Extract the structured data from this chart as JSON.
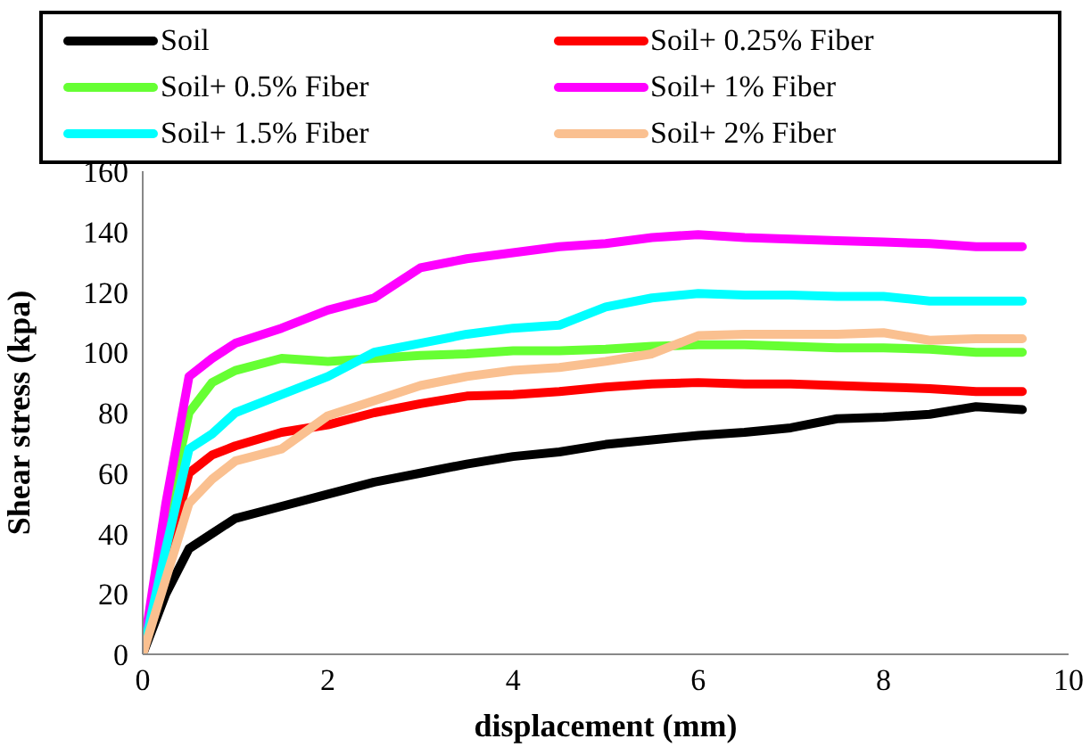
{
  "chart_data": {
    "type": "line",
    "xlabel": "displacement (mm)",
    "ylabel": "Shear stress (kpa)",
    "x": [
      0,
      0.25,
      0.5,
      0.75,
      1,
      1.5,
      2,
      2.5,
      3,
      3.5,
      4,
      4.5,
      5,
      5.5,
      6,
      6.5,
      7,
      7.5,
      8,
      8.5,
      9,
      9.5
    ],
    "series": [
      {
        "name": "Soil",
        "color": "#000000",
        "values": [
          0,
          20,
          35,
          40,
          45,
          49,
          53,
          57,
          60,
          63,
          65.5,
          67,
          69.5,
          71,
          72.5,
          73.5,
          75,
          78,
          78.5,
          79.5,
          82,
          81
        ]
      },
      {
        "name": "Soil+ 0.25% Fiber",
        "color": "#ff0000",
        "values": [
          0,
          30,
          60,
          66,
          69,
          73.5,
          76,
          80,
          83,
          85.5,
          86,
          87,
          88.5,
          89.5,
          90,
          89.5,
          89.5,
          89,
          88.5,
          88,
          87,
          87
        ]
      },
      {
        "name": "Soil+ 0.5% Fiber",
        "color": "#66ff33",
        "values": [
          0,
          45,
          80,
          90,
          94,
          98,
          97,
          98,
          99,
          99.5,
          100.5,
          100.5,
          101,
          102,
          102.5,
          102.5,
          102,
          101.5,
          101.5,
          101,
          100,
          100
        ]
      },
      {
        "name": "Soil+ 1% Fiber",
        "color": "#ff00ff",
        "values": [
          0,
          50,
          92,
          98,
          103,
          108,
          114,
          118,
          128,
          131,
          133,
          135,
          136,
          138,
          139,
          138,
          137.5,
          137,
          136.5,
          136,
          135,
          135
        ]
      },
      {
        "name": "Soil+ 1.5% Fiber",
        "color": "#00ffff",
        "values": [
          0,
          35,
          68,
          73,
          80,
          86,
          92,
          100,
          103,
          106,
          108,
          109,
          115,
          118,
          119.5,
          119,
          119,
          118.5,
          118.5,
          117,
          117,
          117
        ]
      },
      {
        "name": "Soil+ 2% Fiber",
        "color": "#fac090",
        "values": [
          0,
          25,
          50,
          58,
          64,
          68,
          79,
          84,
          89,
          92,
          94,
          95,
          97,
          99.5,
          105.5,
          106,
          106,
          106,
          106.5,
          104,
          104.5,
          104.5
        ]
      }
    ],
    "xlim": [
      0,
      10
    ],
    "xticks": [
      0,
      2,
      4,
      6,
      8,
      10
    ],
    "ylim": [
      0,
      160
    ],
    "yticks": [
      0,
      20,
      40,
      60,
      80,
      100,
      120,
      140,
      160
    ],
    "grid": false,
    "legend": "top",
    "marker": "none",
    "line_style": "solid"
  }
}
